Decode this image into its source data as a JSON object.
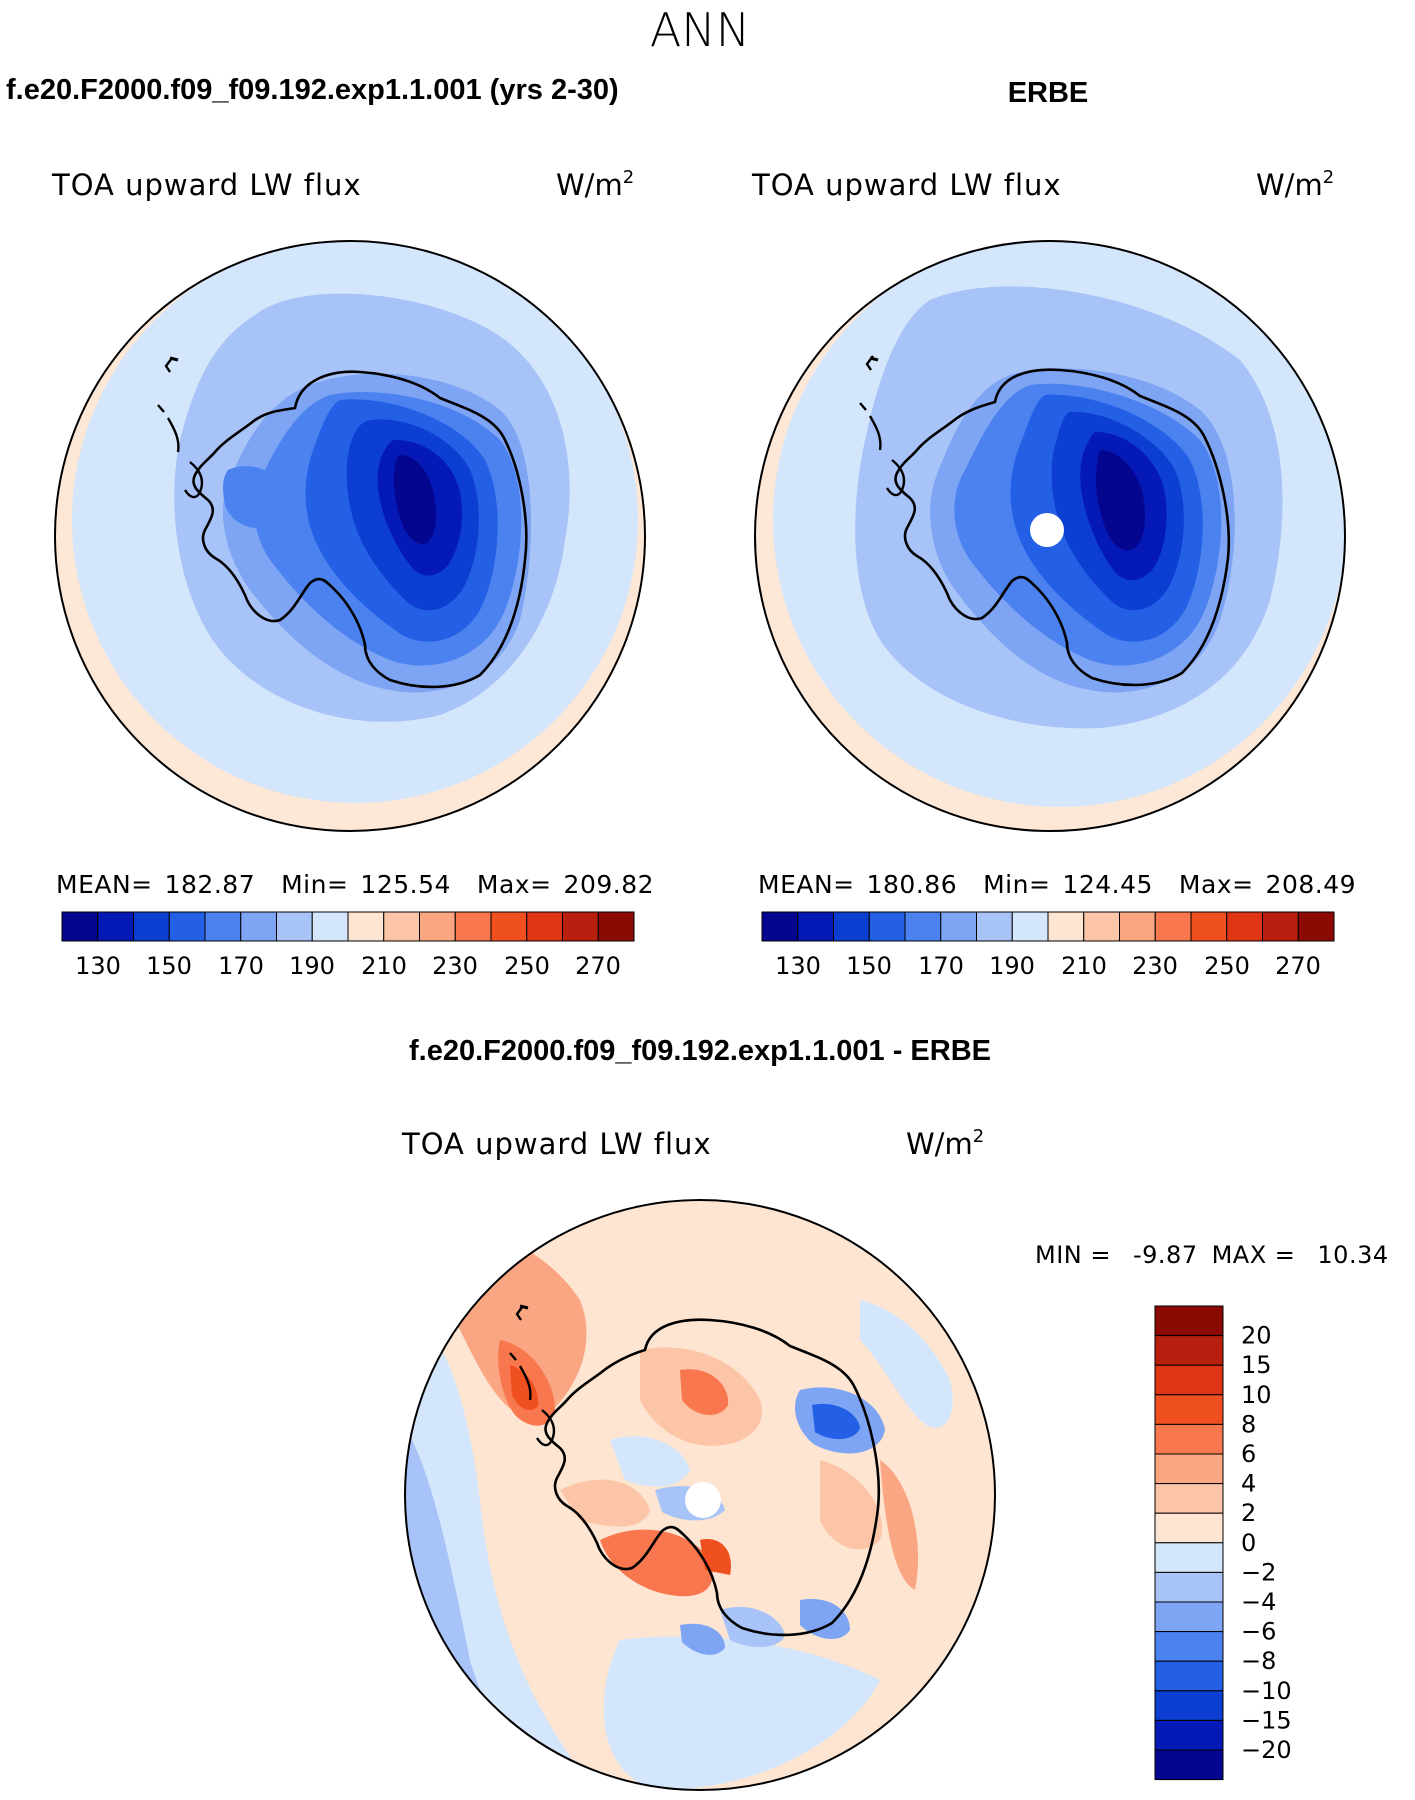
{
  "page_title": "ANN",
  "colors": {
    "ocean_far": "#fde7d6",
    "land": "#000000",
    "blue_scale": [
      "#05068f",
      "#0419b5",
      "#0c3ed1",
      "#2360e6",
      "#4b82ef",
      "#7ea4f4",
      "#a8c3f7",
      "#d4e6fb"
    ],
    "red_scale": [
      "#fde5d1",
      "#fcc5a7",
      "#fba683",
      "#f8774e",
      "#f0501f",
      "#df3514",
      "#b91f0e",
      "#8c0a04"
    ]
  },
  "panels": [
    {
      "id": "model",
      "heading": "f.e20.F2000.f09_f09.192.exp1.1.001 (yrs 2-30)",
      "variable": "TOA upward LW flux",
      "units": "W/m",
      "units_sup": "2",
      "stats": {
        "mean_label": "MEAN=",
        "mean": "182.87",
        "min_label": "Min=",
        "min": "125.54",
        "max_label": "Max=",
        "max": "209.82"
      },
      "colorbar_ticks": [
        "130",
        "150",
        "170",
        "190",
        "210",
        "230",
        "250",
        "270"
      ]
    },
    {
      "id": "obs",
      "heading": "ERBE",
      "variable": "TOA upward LW flux",
      "units": "W/m",
      "units_sup": "2",
      "stats": {
        "mean_label": "MEAN=",
        "mean": "180.86",
        "min_label": "Min=",
        "min": "124.45",
        "max_label": "Max=",
        "max": "208.49"
      },
      "colorbar_ticks": [
        "130",
        "150",
        "170",
        "190",
        "210",
        "230",
        "250",
        "270"
      ]
    }
  ],
  "difference": {
    "heading": "f.e20.F2000.f09_f09.192.exp1.1.001 - ERBE",
    "variable": "TOA upward LW flux",
    "units": "W/m",
    "units_sup": "2",
    "min_label": "MIN =",
    "min": "-9.87",
    "max_label": "MAX =",
    "max": "10.34",
    "colorbar_labels": [
      "20",
      "15",
      "10",
      "8",
      "6",
      "4",
      "2",
      "0",
      "−2",
      "−4",
      "−6",
      "−8",
      "−10",
      "−15",
      "−20"
    ],
    "colorbar_colors": [
      "#8c0a04",
      "#b91f0e",
      "#df3514",
      "#f0501f",
      "#f8774e",
      "#fba683",
      "#fcc5a7",
      "#fde5d1",
      "#d4e6fb",
      "#a8c3f7",
      "#7ea4f4",
      "#4b82ef",
      "#2360e6",
      "#0c3ed1",
      "#0419b5",
      "#05068f"
    ]
  }
}
